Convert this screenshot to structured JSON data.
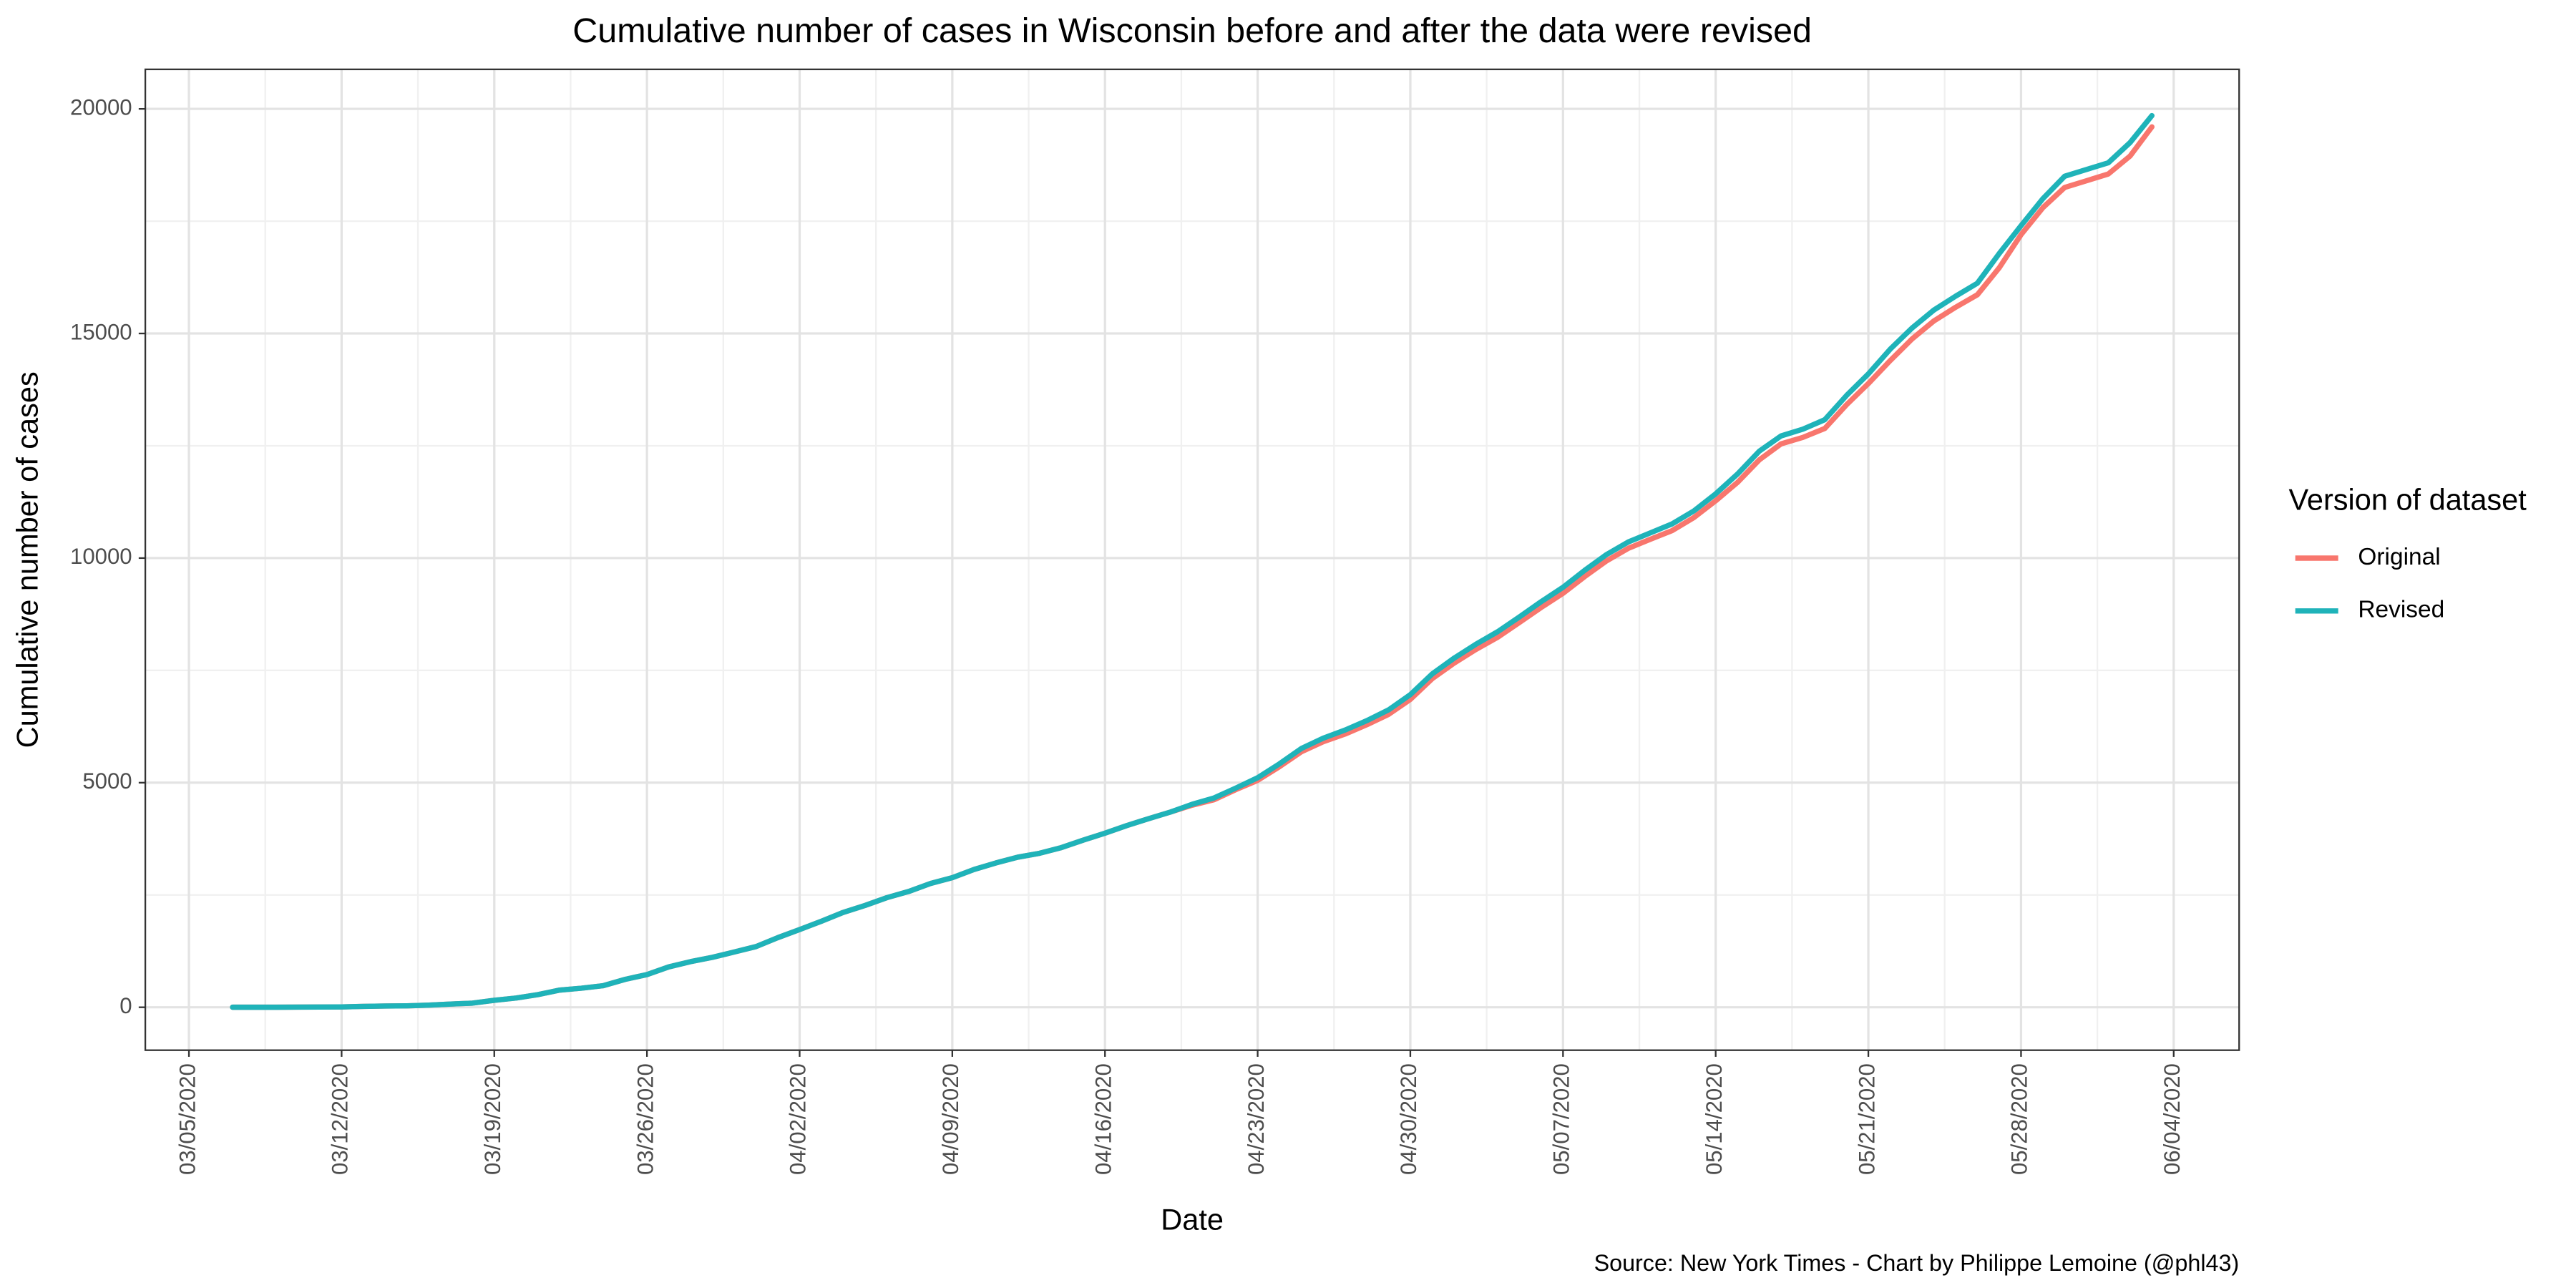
{
  "chart_data": {
    "type": "line",
    "title": "Cumulative number of cases in Wisconsin before and after the data were revised",
    "x_label": "Date",
    "y_label": "Cumulative number of cases",
    "legend_title": "Version of dataset",
    "legend": "right",
    "caption": "Source: New York Times - Chart by Philippe Lemoine (@phl43)",
    "x": [
      "03/07/2020",
      "03/08/2020",
      "03/09/2020",
      "03/10/2020",
      "03/11/2020",
      "03/12/2020",
      "03/13/2020",
      "03/14/2020",
      "03/15/2020",
      "03/16/2020",
      "03/17/2020",
      "03/18/2020",
      "03/19/2020",
      "03/20/2020",
      "03/21/2020",
      "03/22/2020",
      "03/23/2020",
      "03/24/2020",
      "03/25/2020",
      "03/26/2020",
      "03/27/2020",
      "03/28/2020",
      "03/29/2020",
      "03/30/2020",
      "03/31/2020",
      "04/01/2020",
      "04/02/2020",
      "04/03/2020",
      "04/04/2020",
      "04/05/2020",
      "04/06/2020",
      "04/07/2020",
      "04/08/2020",
      "04/09/2020",
      "04/10/2020",
      "04/11/2020",
      "04/12/2020",
      "04/13/2020",
      "04/14/2020",
      "04/15/2020",
      "04/16/2020",
      "04/17/2020",
      "04/18/2020",
      "04/19/2020",
      "04/20/2020",
      "04/21/2020",
      "04/22/2020",
      "04/23/2020",
      "04/24/2020",
      "04/25/2020",
      "04/26/2020",
      "04/27/2020",
      "04/28/2020",
      "04/29/2020",
      "04/30/2020",
      "05/01/2020",
      "05/02/2020",
      "05/03/2020",
      "05/04/2020",
      "05/05/2020",
      "05/06/2020",
      "05/07/2020",
      "05/08/2020",
      "05/09/2020",
      "05/10/2020",
      "05/11/2020",
      "05/12/2020",
      "05/13/2020",
      "05/14/2020",
      "05/15/2020",
      "05/16/2020",
      "05/17/2020",
      "05/18/2020",
      "05/19/2020",
      "05/20/2020",
      "05/21/2020",
      "05/22/2020",
      "05/23/2020",
      "05/24/2020",
      "05/25/2020",
      "05/26/2020",
      "05/27/2020",
      "05/28/2020",
      "05/29/2020",
      "05/30/2020",
      "05/31/2020",
      "06/01/2020",
      "06/02/2020",
      "06/03/2020"
    ],
    "series": [
      {
        "name": "Original",
        "color": "#F8766D",
        "values": [
          1,
          1,
          1,
          3,
          6,
          8,
          19,
          27,
          32,
          47,
          72,
          92,
          155,
          206,
          282,
          383,
          425,
          481,
          621,
          728,
          899,
          1016,
          1112,
          1230,
          1351,
          1550,
          1730,
          1916,
          2112,
          2267,
          2440,
          2578,
          2756,
          2885,
          3068,
          3213,
          3341,
          3428,
          3555,
          3721,
          3875,
          4045,
          4199,
          4346,
          4499,
          4620,
          4845,
          5052,
          5356,
          5687,
          5911,
          6081,
          6289,
          6520,
          6854,
          7314,
          7660,
          7964,
          8236,
          8566,
          8901,
          9215,
          9590,
          9939,
          10219,
          10418,
          10611,
          10902,
          11275,
          11685,
          12187,
          12543,
          12687,
          12885,
          13413,
          13885,
          14396,
          14877,
          15277,
          15584,
          15863,
          16462,
          17200,
          17800,
          18250,
          18400,
          18550,
          18950,
          19600
        ]
      },
      {
        "name": "Revised",
        "color": "#1FB3B9",
        "values": [
          1,
          1,
          1,
          3,
          6,
          8,
          19,
          27,
          32,
          47,
          72,
          92,
          155,
          206,
          282,
          383,
          425,
          481,
          621,
          728,
          899,
          1016,
          1112,
          1230,
          1351,
          1550,
          1730,
          1916,
          2112,
          2267,
          2440,
          2578,
          2756,
          2885,
          3068,
          3213,
          3341,
          3428,
          3555,
          3721,
          3875,
          4045,
          4199,
          4346,
          4520,
          4660,
          4880,
          5110,
          5420,
          5760,
          5990,
          6170,
          6380,
          6620,
          6960,
          7420,
          7770,
          8080,
          8360,
          8690,
          9030,
          9350,
          9730,
          10080,
          10360,
          10560,
          10760,
          11050,
          11430,
          11870,
          12380,
          12720,
          12870,
          13080,
          13620,
          14100,
          14650,
          15120,
          15520,
          15830,
          16120,
          16780,
          17400,
          18000,
          18500,
          18650,
          18800,
          19250,
          19850
        ]
      }
    ],
    "xlim": [
      "03/03/2020",
      "06/07/2020"
    ],
    "xticks": [
      "03/05/2020",
      "03/12/2020",
      "03/19/2020",
      "03/26/2020",
      "04/02/2020",
      "04/09/2020",
      "04/16/2020",
      "04/23/2020",
      "04/30/2020",
      "05/07/2020",
      "05/14/2020",
      "05/21/2020",
      "05/28/2020",
      "06/04/2020"
    ],
    "ylim": [
      -956,
      20880
    ],
    "yticks": [
      0,
      5000,
      10000,
      15000,
      20000
    ],
    "grid": true
  }
}
